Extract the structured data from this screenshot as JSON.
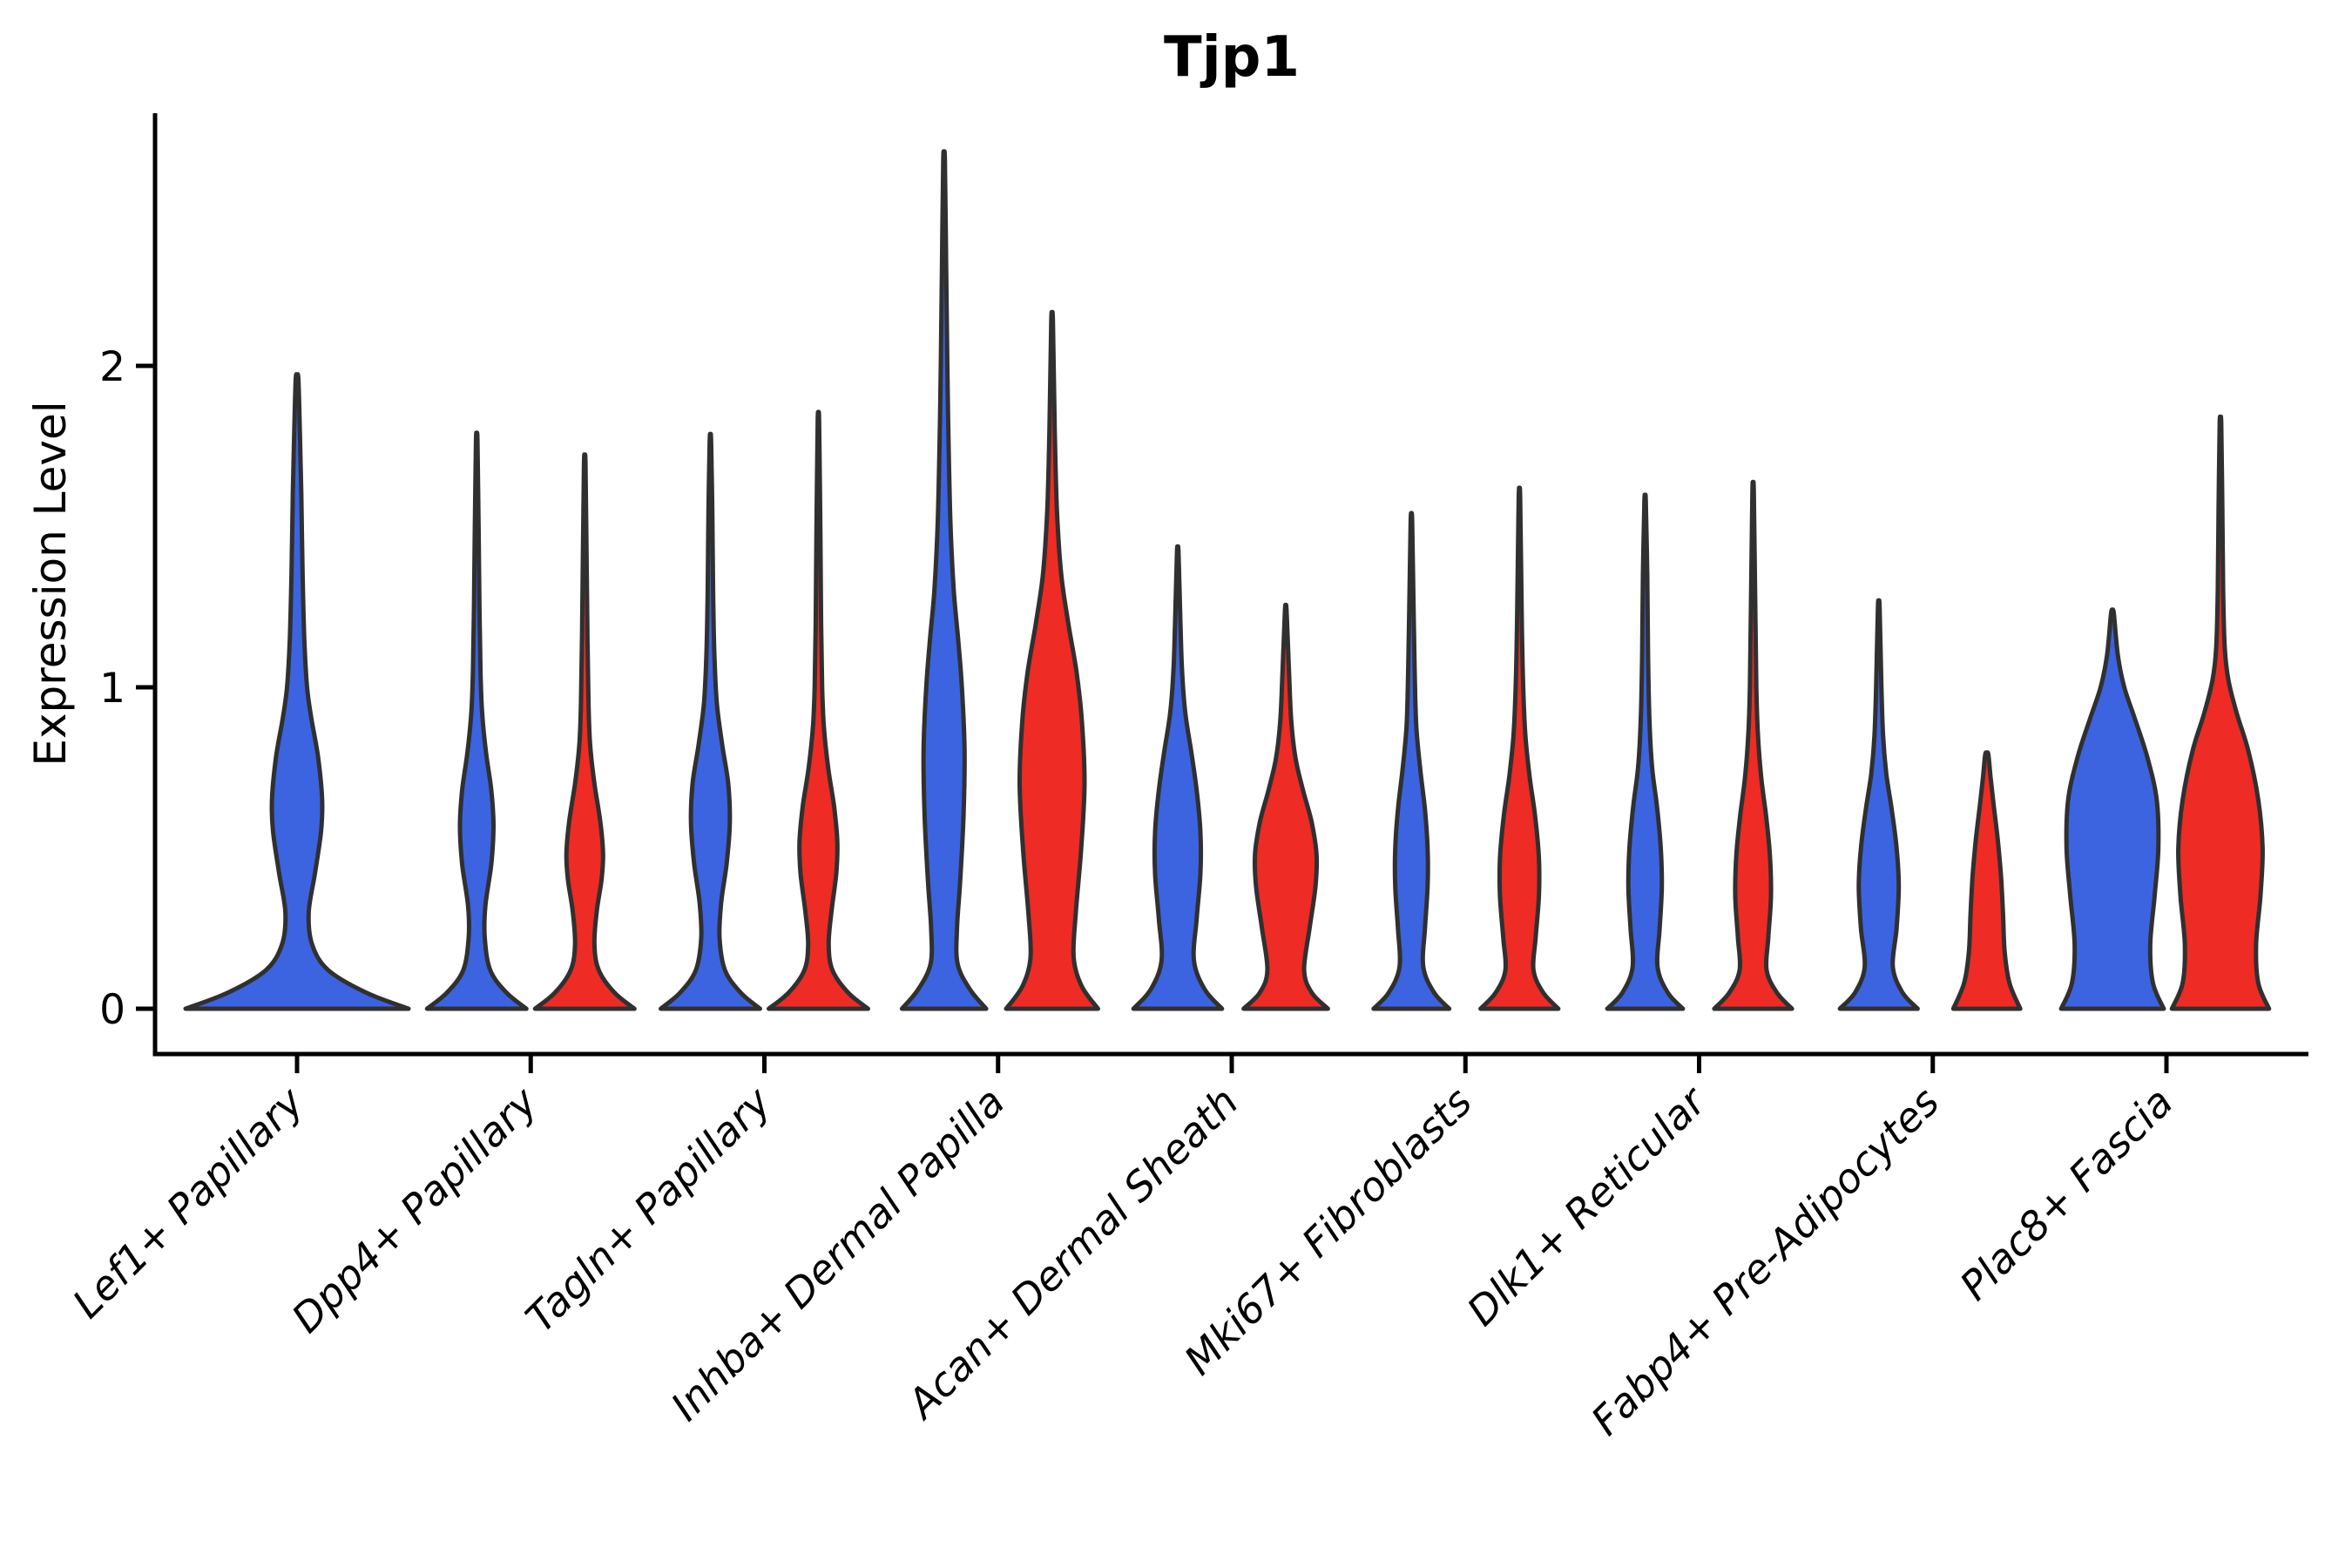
{
  "title": "Tjp1",
  "y_axis": {
    "label": "Expression Level",
    "tick_labels": [
      "0",
      "1",
      "2"
    ]
  },
  "colors": {
    "blue_fill": "#3C64E0",
    "red_fill": "#EE2B24",
    "violin_stroke": "#303030",
    "axis_stroke": "#000000",
    "background": "#FFFFFF"
  },
  "chart_data": {
    "type": "violin",
    "title": "Tjp1",
    "xlabel": "",
    "ylabel": "Expression Level",
    "ylim": [
      -0.14,
      2.78
    ],
    "yticks": [
      0,
      1,
      2
    ],
    "grid": false,
    "legend": "none",
    "categories": [
      "Lef1+ Papillary",
      "Dpp4+ Papillary",
      "Tagln+ Papillary",
      "Inhba+ Dermal Papilla",
      "Acan+ Dermal Sheath",
      "Mki67+ Fibroblasts",
      "Dlk1+ Reticular",
      "Fabp4+ Pre-Adipocytes",
      "Plac8+ Fascia"
    ],
    "series": [
      {
        "name": "blue",
        "color": "#3C64E0"
      },
      {
        "name": "red",
        "color": "#EE2B24"
      }
    ],
    "violins": [
      {
        "category_index": 0,
        "series": "blue",
        "solo": true,
        "max_expression": 1.96,
        "profile": [
          [
            0,
            1.0
          ],
          [
            0.05,
            0.62
          ],
          [
            0.12,
            0.28
          ],
          [
            0.2,
            0.135
          ],
          [
            0.3,
            0.105
          ],
          [
            0.42,
            0.16
          ],
          [
            0.55,
            0.215
          ],
          [
            0.65,
            0.225
          ],
          [
            0.78,
            0.19
          ],
          [
            0.9,
            0.13
          ],
          [
            1.0,
            0.09
          ],
          [
            1.15,
            0.065
          ],
          [
            1.35,
            0.05
          ],
          [
            1.6,
            0.038
          ],
          [
            1.8,
            0.025
          ],
          [
            1.96,
            0.012
          ]
        ]
      },
      {
        "category_index": 1,
        "series": "blue",
        "solo": false,
        "max_expression": 1.77,
        "profile": [
          [
            0,
            0.92
          ],
          [
            0.05,
            0.55
          ],
          [
            0.12,
            0.25
          ],
          [
            0.22,
            0.15
          ],
          [
            0.32,
            0.16
          ],
          [
            0.45,
            0.27
          ],
          [
            0.57,
            0.31
          ],
          [
            0.68,
            0.27
          ],
          [
            0.8,
            0.17
          ],
          [
            0.92,
            0.1
          ],
          [
            1.05,
            0.07
          ],
          [
            1.25,
            0.05
          ],
          [
            1.5,
            0.035
          ],
          [
            1.77,
            0.013
          ]
        ]
      },
      {
        "category_index": 1,
        "series": "red",
        "solo": false,
        "max_expression": 1.7,
        "profile": [
          [
            0,
            0.92
          ],
          [
            0.05,
            0.55
          ],
          [
            0.12,
            0.26
          ],
          [
            0.2,
            0.18
          ],
          [
            0.3,
            0.22
          ],
          [
            0.4,
            0.31
          ],
          [
            0.48,
            0.34
          ],
          [
            0.58,
            0.29
          ],
          [
            0.7,
            0.18
          ],
          [
            0.82,
            0.1
          ],
          [
            0.95,
            0.07
          ],
          [
            1.15,
            0.05
          ],
          [
            1.4,
            0.035
          ],
          [
            1.7,
            0.013
          ]
        ]
      },
      {
        "category_index": 2,
        "series": "blue",
        "solo": false,
        "max_expression": 1.77,
        "profile": [
          [
            0,
            0.92
          ],
          [
            0.05,
            0.56
          ],
          [
            0.12,
            0.27
          ],
          [
            0.22,
            0.17
          ],
          [
            0.33,
            0.2
          ],
          [
            0.45,
            0.3
          ],
          [
            0.58,
            0.36
          ],
          [
            0.7,
            0.33
          ],
          [
            0.82,
            0.22
          ],
          [
            0.95,
            0.12
          ],
          [
            1.1,
            0.075
          ],
          [
            1.3,
            0.05
          ],
          [
            1.55,
            0.035
          ],
          [
            1.77,
            0.013
          ]
        ]
      },
      {
        "category_index": 2,
        "series": "red",
        "solo": false,
        "max_expression": 1.83,
        "profile": [
          [
            0,
            0.92
          ],
          [
            0.05,
            0.55
          ],
          [
            0.12,
            0.26
          ],
          [
            0.2,
            0.19
          ],
          [
            0.3,
            0.24
          ],
          [
            0.42,
            0.33
          ],
          [
            0.52,
            0.35
          ],
          [
            0.63,
            0.29
          ],
          [
            0.75,
            0.18
          ],
          [
            0.88,
            0.1
          ],
          [
            1.0,
            0.07
          ],
          [
            1.2,
            0.05
          ],
          [
            1.5,
            0.035
          ],
          [
            1.83,
            0.013
          ]
        ]
      },
      {
        "category_index": 3,
        "series": "blue",
        "solo": false,
        "max_expression": 2.64,
        "profile": [
          [
            0,
            0.78
          ],
          [
            0.06,
            0.48
          ],
          [
            0.14,
            0.25
          ],
          [
            0.25,
            0.24
          ],
          [
            0.4,
            0.3
          ],
          [
            0.6,
            0.36
          ],
          [
            0.8,
            0.38
          ],
          [
            1.0,
            0.33
          ],
          [
            1.15,
            0.26
          ],
          [
            1.3,
            0.18
          ],
          [
            1.5,
            0.12
          ],
          [
            1.75,
            0.085
          ],
          [
            2.0,
            0.06
          ],
          [
            2.3,
            0.04
          ],
          [
            2.64,
            0.015
          ]
        ]
      },
      {
        "category_index": 3,
        "series": "red",
        "solo": false,
        "max_expression": 2.14,
        "profile": [
          [
            0,
            0.85
          ],
          [
            0.07,
            0.55
          ],
          [
            0.16,
            0.4
          ],
          [
            0.3,
            0.44
          ],
          [
            0.5,
            0.54
          ],
          [
            0.7,
            0.6
          ],
          [
            0.9,
            0.55
          ],
          [
            1.05,
            0.45
          ],
          [
            1.2,
            0.3
          ],
          [
            1.35,
            0.17
          ],
          [
            1.55,
            0.09
          ],
          [
            1.8,
            0.05
          ],
          [
            2.14,
            0.015
          ]
        ]
      },
      {
        "category_index": 4,
        "series": "blue",
        "solo": false,
        "max_expression": 1.42,
        "profile": [
          [
            0,
            0.82
          ],
          [
            0.06,
            0.5
          ],
          [
            0.15,
            0.3
          ],
          [
            0.28,
            0.35
          ],
          [
            0.42,
            0.42
          ],
          [
            0.55,
            0.42
          ],
          [
            0.68,
            0.35
          ],
          [
            0.8,
            0.25
          ],
          [
            0.92,
            0.14
          ],
          [
            1.05,
            0.08
          ],
          [
            1.2,
            0.05
          ],
          [
            1.42,
            0.015
          ]
        ]
      },
      {
        "category_index": 4,
        "series": "red",
        "solo": false,
        "max_expression": 1.24,
        "profile": [
          [
            0,
            0.78
          ],
          [
            0.05,
            0.48
          ],
          [
            0.12,
            0.34
          ],
          [
            0.25,
            0.44
          ],
          [
            0.38,
            0.55
          ],
          [
            0.48,
            0.57
          ],
          [
            0.58,
            0.48
          ],
          [
            0.68,
            0.32
          ],
          [
            0.78,
            0.18
          ],
          [
            0.9,
            0.1
          ],
          [
            1.05,
            0.06
          ],
          [
            1.24,
            0.015
          ]
        ]
      },
      {
        "category_index": 5,
        "series": "blue",
        "solo": false,
        "max_expression": 1.52,
        "profile": [
          [
            0,
            0.7
          ],
          [
            0.05,
            0.42
          ],
          [
            0.13,
            0.22
          ],
          [
            0.25,
            0.25
          ],
          [
            0.38,
            0.3
          ],
          [
            0.5,
            0.3
          ],
          [
            0.62,
            0.25
          ],
          [
            0.75,
            0.16
          ],
          [
            0.88,
            0.09
          ],
          [
            1.05,
            0.06
          ],
          [
            1.25,
            0.04
          ],
          [
            1.52,
            0.013
          ]
        ]
      },
      {
        "category_index": 5,
        "series": "red",
        "solo": false,
        "max_expression": 1.59,
        "profile": [
          [
            0,
            0.72
          ],
          [
            0.05,
            0.44
          ],
          [
            0.12,
            0.26
          ],
          [
            0.22,
            0.3
          ],
          [
            0.35,
            0.36
          ],
          [
            0.47,
            0.36
          ],
          [
            0.6,
            0.29
          ],
          [
            0.72,
            0.19
          ],
          [
            0.85,
            0.11
          ],
          [
            1.0,
            0.07
          ],
          [
            1.2,
            0.045
          ],
          [
            1.59,
            0.013
          ]
        ]
      },
      {
        "category_index": 6,
        "series": "blue",
        "solo": false,
        "max_expression": 1.58,
        "profile": [
          [
            0,
            0.7
          ],
          [
            0.05,
            0.42
          ],
          [
            0.13,
            0.23
          ],
          [
            0.25,
            0.27
          ],
          [
            0.38,
            0.31
          ],
          [
            0.5,
            0.29
          ],
          [
            0.63,
            0.22
          ],
          [
            0.75,
            0.13
          ],
          [
            0.9,
            0.08
          ],
          [
            1.1,
            0.055
          ],
          [
            1.35,
            0.04
          ],
          [
            1.58,
            0.013
          ]
        ]
      },
      {
        "category_index": 6,
        "series": "red",
        "solo": false,
        "max_expression": 1.61,
        "profile": [
          [
            0,
            0.72
          ],
          [
            0.05,
            0.44
          ],
          [
            0.12,
            0.25
          ],
          [
            0.22,
            0.28
          ],
          [
            0.35,
            0.33
          ],
          [
            0.48,
            0.31
          ],
          [
            0.6,
            0.24
          ],
          [
            0.72,
            0.15
          ],
          [
            0.85,
            0.09
          ],
          [
            1.0,
            0.06
          ],
          [
            1.25,
            0.04
          ],
          [
            1.61,
            0.013
          ]
        ]
      },
      {
        "category_index": 7,
        "series": "blue",
        "solo": false,
        "max_expression": 1.25,
        "profile": [
          [
            0,
            0.72
          ],
          [
            0.05,
            0.44
          ],
          [
            0.13,
            0.26
          ],
          [
            0.25,
            0.33
          ],
          [
            0.38,
            0.37
          ],
          [
            0.5,
            0.33
          ],
          [
            0.62,
            0.24
          ],
          [
            0.73,
            0.14
          ],
          [
            0.85,
            0.08
          ],
          [
            1.0,
            0.05
          ],
          [
            1.25,
            0.015
          ]
        ]
      },
      {
        "category_index": 7,
        "series": "red",
        "solo": false,
        "max_expression": 0.79,
        "profile": [
          [
            0,
            0.62
          ],
          [
            0.08,
            0.42
          ],
          [
            0.18,
            0.33
          ],
          [
            0.3,
            0.3
          ],
          [
            0.42,
            0.26
          ],
          [
            0.53,
            0.2
          ],
          [
            0.63,
            0.13
          ],
          [
            0.72,
            0.07
          ],
          [
            0.79,
            0.03
          ]
        ]
      },
      {
        "category_index": 8,
        "series": "blue",
        "solo": false,
        "max_expression": 1.23,
        "profile": [
          [
            0,
            0.95
          ],
          [
            0.08,
            0.75
          ],
          [
            0.2,
            0.7
          ],
          [
            0.35,
            0.78
          ],
          [
            0.5,
            0.85
          ],
          [
            0.65,
            0.82
          ],
          [
            0.78,
            0.65
          ],
          [
            0.9,
            0.42
          ],
          [
            1.0,
            0.22
          ],
          [
            1.1,
            0.1
          ],
          [
            1.23,
            0.025
          ]
        ]
      },
      {
        "category_index": 8,
        "series": "red",
        "solo": false,
        "max_expression": 1.82,
        "profile": [
          [
            0,
            0.9
          ],
          [
            0.08,
            0.7
          ],
          [
            0.2,
            0.66
          ],
          [
            0.35,
            0.74
          ],
          [
            0.5,
            0.78
          ],
          [
            0.65,
            0.7
          ],
          [
            0.8,
            0.52
          ],
          [
            0.92,
            0.3
          ],
          [
            1.02,
            0.15
          ],
          [
            1.12,
            0.08
          ],
          [
            1.3,
            0.05
          ],
          [
            1.55,
            0.035
          ],
          [
            1.82,
            0.015
          ]
        ]
      }
    ]
  }
}
